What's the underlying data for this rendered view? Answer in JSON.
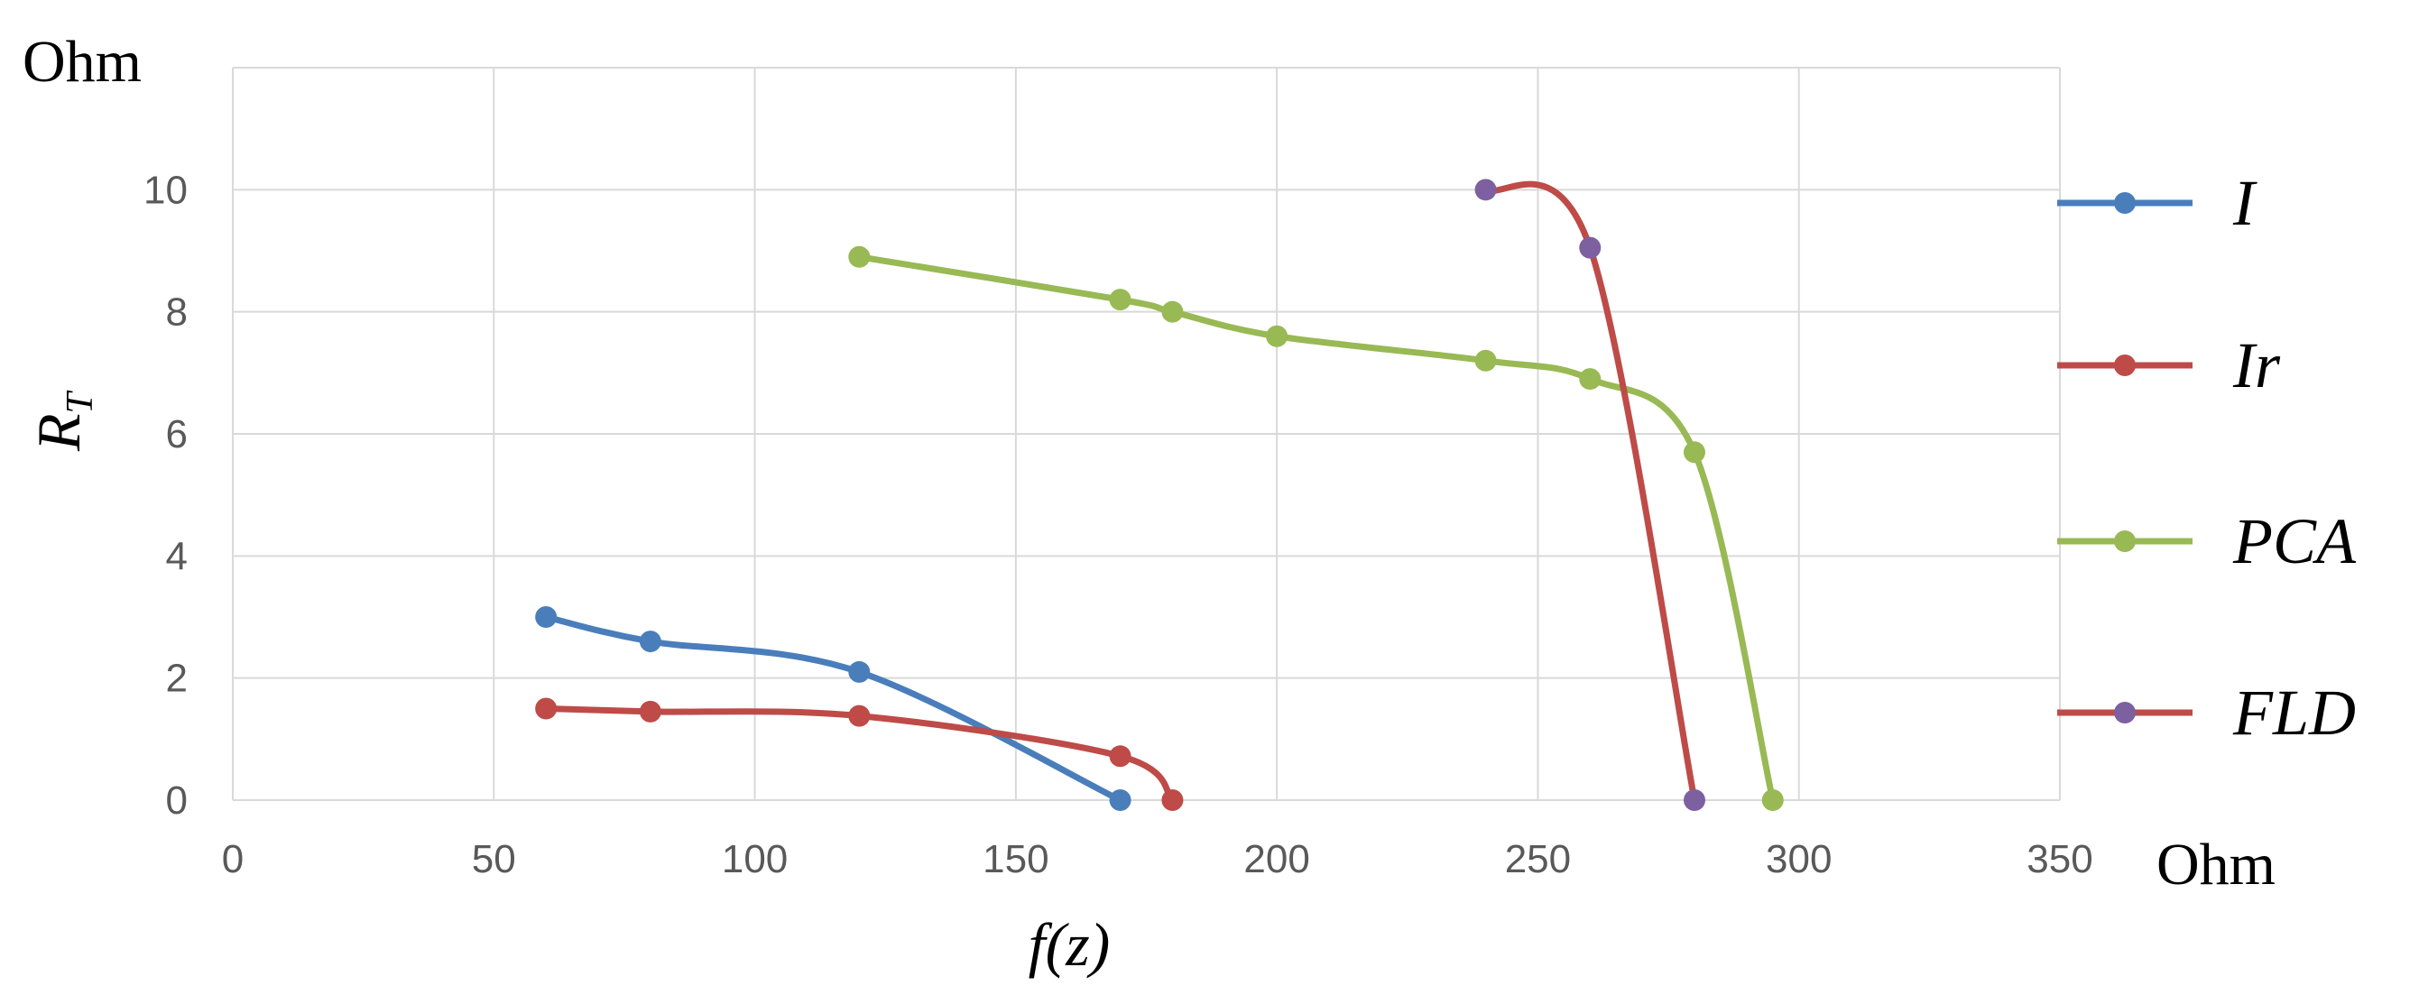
{
  "chart_data": {
    "type": "line",
    "xlabel": "f(z)",
    "ylabel": "R",
    "ylabel_sub": "T",
    "y_unit": "Ohm",
    "x_unit": "Ohm",
    "xlim": [
      0,
      350
    ],
    "ylim": [
      0,
      12
    ],
    "x_ticks": [
      0,
      50,
      100,
      150,
      200,
      250,
      300,
      350
    ],
    "y_ticks": [
      0,
      2,
      4,
      6,
      8,
      10
    ],
    "grid": true,
    "legend_position": "right",
    "series": [
      {
        "name": "I",
        "line_color": "#4a7ebb",
        "marker_color": "#4a7ebb",
        "points": [
          [
            60,
            3.0
          ],
          [
            80,
            2.6
          ],
          [
            120,
            2.1
          ],
          [
            170,
            0.0
          ]
        ]
      },
      {
        "name": "Ir",
        "line_color": "#be4b48",
        "marker_color": "#be4b48",
        "points": [
          [
            60,
            1.5
          ],
          [
            80,
            1.45
          ],
          [
            120,
            1.38
          ],
          [
            170,
            0.72
          ],
          [
            180,
            0.0
          ]
        ]
      },
      {
        "name": "PCA",
        "line_color": "#98b954",
        "marker_color": "#98b954",
        "points": [
          [
            120,
            8.9
          ],
          [
            170,
            8.2
          ],
          [
            180,
            8.0
          ],
          [
            200,
            7.6
          ],
          [
            240,
            7.2
          ],
          [
            260,
            6.9
          ],
          [
            280,
            5.7
          ],
          [
            295,
            0.0
          ]
        ]
      },
      {
        "name": "FLD",
        "line_color": "#be4b48",
        "marker_color": "#7d60a0",
        "points": [
          [
            240,
            10.0
          ],
          [
            260,
            9.05
          ],
          [
            280,
            0.0
          ]
        ]
      }
    ]
  }
}
